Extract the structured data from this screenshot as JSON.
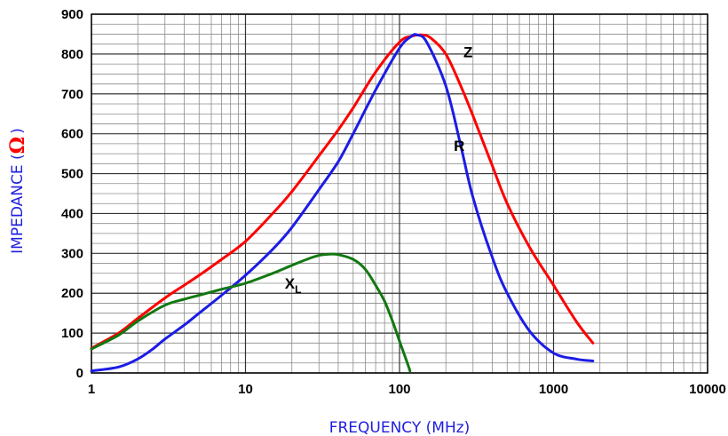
{
  "chart_data": {
    "type": "line",
    "title": "",
    "xlabel": "FREQUENCY  (MHz)",
    "ylabel_text": "IMPEDANCE  (",
    "ylabel_symbol": "Ω",
    "ylabel_close": ")",
    "x_scale": "log",
    "xlim": [
      1,
      10000
    ],
    "ylim": [
      0,
      900
    ],
    "x_ticks": [
      1,
      10,
      100,
      1000,
      10000
    ],
    "x_tick_labels": [
      "1",
      "10",
      "100",
      "1000",
      "10000"
    ],
    "y_ticks": [
      0,
      100,
      200,
      300,
      400,
      500,
      600,
      700,
      800,
      900
    ],
    "y_tick_labels": [
      "0",
      "100",
      "200",
      "300",
      "400",
      "500",
      "600",
      "700",
      "800",
      "900"
    ],
    "grid": true,
    "series": [
      {
        "name": "Z",
        "label_main": "Z",
        "label_sub": "",
        "color": "#ff0000",
        "label_at": [
          260,
          805
        ],
        "x": [
          1,
          1.5,
          2,
          3,
          4,
          5,
          7,
          10,
          15,
          20,
          30,
          40,
          50,
          70,
          100,
          120,
          140,
          160,
          200,
          250,
          300,
          400,
          500,
          700,
          1000,
          1400,
          1800
        ],
        "y": [
          62,
          100,
          137,
          188,
          220,
          245,
          285,
          330,
          400,
          455,
          545,
          610,
          665,
          755,
          830,
          845,
          848,
          840,
          800,
          720,
          645,
          520,
          425,
          315,
          220,
          130,
          75
        ]
      },
      {
        "name": "R",
        "label_main": "R",
        "label_sub": "",
        "color": "#1c1ce6",
        "label_at": [
          225,
          570
        ],
        "x": [
          1,
          1.5,
          2,
          2.5,
          3,
          4,
          5,
          7,
          10,
          15,
          20,
          30,
          40,
          50,
          70,
          100,
          120,
          130,
          150,
          200,
          250,
          300,
          400,
          500,
          700,
          1000,
          1400,
          1800
        ],
        "y": [
          5,
          15,
          35,
          60,
          85,
          120,
          150,
          195,
          245,
          310,
          365,
          460,
          530,
          600,
          710,
          815,
          845,
          848,
          830,
          720,
          570,
          440,
          290,
          200,
          105,
          50,
          35,
          30
        ]
      },
      {
        "name": "X_L",
        "label_main": "X",
        "label_sub": "L",
        "color": "#127812",
        "label_at": [
          18,
          225
        ],
        "x": [
          1,
          1.5,
          2,
          3,
          4,
          5,
          7,
          10,
          15,
          20,
          25,
          30,
          35,
          40,
          50,
          60,
          70,
          80,
          90,
          100,
          110,
          117
        ],
        "y": [
          60,
          95,
          130,
          170,
          185,
          195,
          210,
          225,
          250,
          270,
          285,
          295,
          298,
          297,
          285,
          260,
          220,
          180,
          130,
          80,
          35,
          5
        ]
      }
    ]
  }
}
